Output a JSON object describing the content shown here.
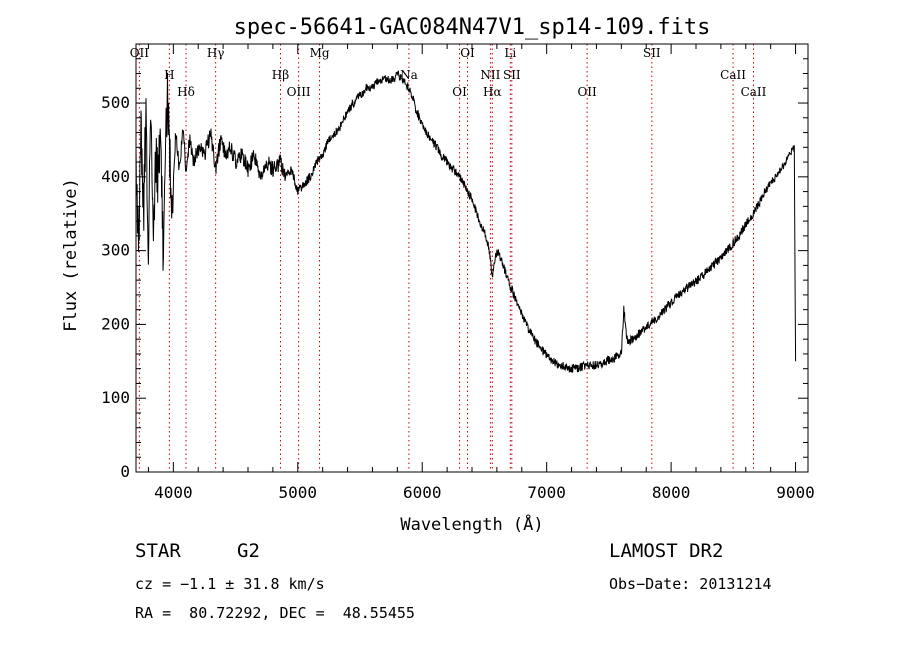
{
  "chart_data": {
    "type": "line",
    "title": "spec-56641-GAC084N47V1_sp14-109.fits",
    "xlabel": "Wavelength (Å)",
    "ylabel": "Flux (relative)",
    "xlim": [
      3700,
      9100
    ],
    "ylim": [
      0,
      580
    ],
    "xticks": [
      4000,
      5000,
      6000,
      7000,
      8000,
      9000
    ],
    "yticks": [
      0,
      100,
      200,
      300,
      400,
      500
    ],
    "line_color": "#000000",
    "marker_color": "#cc0000",
    "grid": false,
    "series": [
      {
        "x": [
          3700,
          3720,
          3740,
          3760,
          3780,
          3800,
          3820,
          3840,
          3860,
          3880,
          3900,
          3920,
          3933,
          3950,
          3968,
          3990,
          4020,
          4050,
          4080,
          4102,
          4130,
          4160,
          4200,
          4250,
          4300,
          4340,
          4380,
          4420,
          4460,
          4500,
          4550,
          4600,
          4650,
          4700,
          4750,
          4800,
          4861,
          4900,
          4950,
          5000,
          5050,
          5100,
          5150,
          5200,
          5250,
          5300,
          5350,
          5400,
          5450,
          5500,
          5550,
          5600,
          5650,
          5700,
          5750,
          5800,
          5850,
          5893,
          5920,
          5950,
          6000,
          6050,
          6100,
          6150,
          6200,
          6250,
          6300,
          6350,
          6400,
          6450,
          6500,
          6530,
          6563,
          6600,
          6650,
          6700,
          6750,
          6800,
          6850,
          6900,
          6950,
          7000,
          7050,
          7100,
          7150,
          7200,
          7250,
          7300,
          7350,
          7400,
          7450,
          7500,
          7550,
          7600,
          7620,
          7650,
          7700,
          7750,
          7800,
          7850,
          7900,
          7950,
          8000,
          8050,
          8100,
          8150,
          8200,
          8250,
          8300,
          8350,
          8400,
          8450,
          8500,
          8550,
          8600,
          8650,
          8700,
          8750,
          8800,
          8850,
          8900,
          8950,
          8990,
          9000
        ],
        "y": [
          420,
          300,
          450,
          350,
          480,
          320,
          470,
          290,
          430,
          400,
          480,
          250,
          380,
          520,
          440,
          350,
          460,
          410,
          470,
          400,
          450,
          420,
          440,
          430,
          460,
          410,
          450,
          430,
          440,
          420,
          430,
          410,
          430,
          400,
          420,
          410,
          420,
          400,
          410,
          380,
          390,
          400,
          420,
          430,
          450,
          460,
          470,
          490,
          500,
          510,
          520,
          520,
          530,
          535,
          530,
          540,
          530,
          520,
          510,
          490,
          470,
          455,
          445,
          430,
          420,
          410,
          400,
          385,
          370,
          345,
          325,
          310,
          265,
          300,
          280,
          255,
          235,
          215,
          195,
          180,
          168,
          158,
          150,
          145,
          142,
          140,
          141,
          143,
          145,
          145,
          148,
          152,
          155,
          160,
          220,
          175,
          182,
          188,
          196,
          204,
          210,
          220,
          230,
          238,
          245,
          252,
          258,
          265,
          275,
          282,
          290,
          300,
          310,
          322,
          335,
          348,
          362,
          378,
          392,
          400,
          415,
          430,
          440,
          150
        ]
      }
    ],
    "line_markers": [
      {
        "label": "OII",
        "x": 3727
      },
      {
        "label": "H",
        "x": 3968
      },
      {
        "label": "Hδ",
        "x": 4102
      },
      {
        "label": "Hγ",
        "x": 4340
      },
      {
        "label": "Hβ",
        "x": 4861
      },
      {
        "label": "OIII",
        "x": 5007
      },
      {
        "label": "Mg",
        "x": 5175
      },
      {
        "label": "Na",
        "x": 5893
      },
      {
        "label": "OI",
        "x": 6300
      },
      {
        "label": "OI",
        "x": 6364
      },
      {
        "label": "NII",
        "x": 6548
      },
      {
        "label": "Hα",
        "x": 6563
      },
      {
        "label": "Li",
        "x": 6708
      },
      {
        "label": "SII",
        "x": 6720
      },
      {
        "label": "OII",
        "x": 7325
      },
      {
        "label": "SII",
        "x": 7845
      },
      {
        "label": "CaII",
        "x": 8498
      },
      {
        "label": "CaII",
        "x": 8662
      }
    ]
  },
  "info": {
    "object_class": "STAR",
    "subclass": "G2",
    "survey": "LAMOST DR2",
    "redshift": "cz = −1.1 ± 31.8 km/s",
    "obs_date": "Obs−Date: 20131214",
    "coords": "RA =  80.72292, DEC =  48.55455"
  }
}
